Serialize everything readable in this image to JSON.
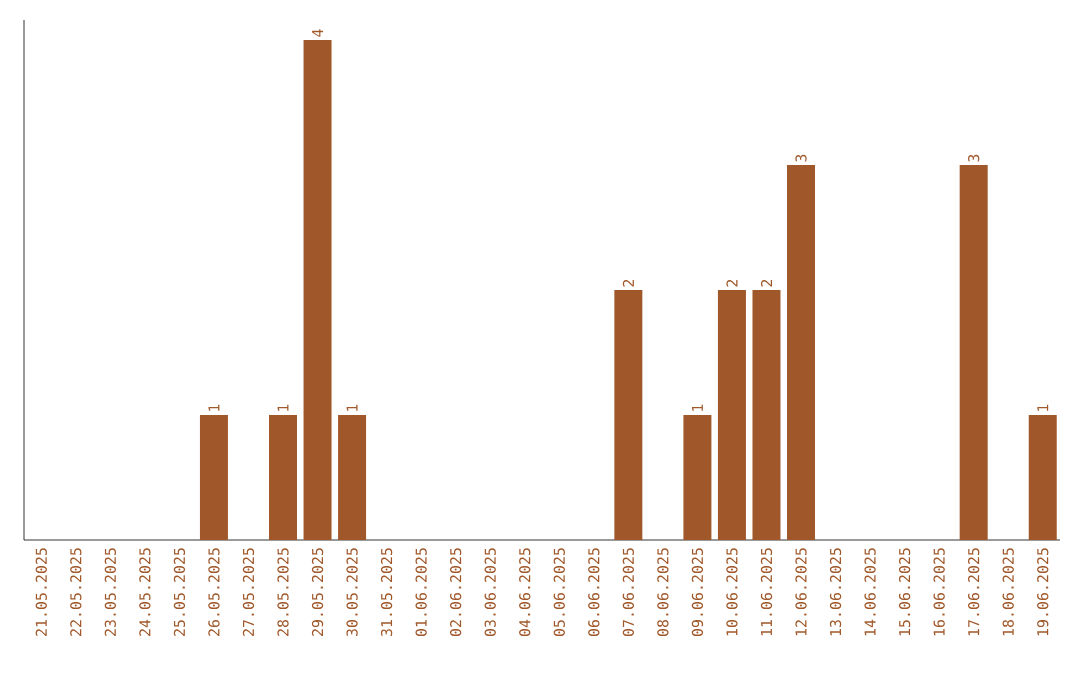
{
  "chart_data": {
    "type": "bar",
    "color": "#a0582a",
    "categories": [
      "21.05.2025",
      "22.05.2025",
      "23.05.2025",
      "24.05.2025",
      "25.05.2025",
      "26.05.2025",
      "27.05.2025",
      "28.05.2025",
      "29.05.2025",
      "30.05.2025",
      "31.05.2025",
      "01.06.2025",
      "02.06.2025",
      "03.06.2025",
      "04.06.2025",
      "05.06.2025",
      "06.06.2025",
      "07.06.2025",
      "08.06.2025",
      "09.06.2025",
      "10.06.2025",
      "11.06.2025",
      "12.06.2025",
      "13.06.2025",
      "14.06.2025",
      "15.06.2025",
      "16.06.2025",
      "17.06.2025",
      "18.06.2025",
      "19.06.2025"
    ],
    "values": [
      0,
      0,
      0,
      0,
      0,
      1,
      0,
      1,
      4,
      1,
      0,
      0,
      0,
      0,
      0,
      0,
      0,
      2,
      0,
      1,
      2,
      2,
      3,
      0,
      0,
      0,
      0,
      3,
      0,
      1
    ],
    "value_labels": [
      null,
      null,
      null,
      null,
      null,
      "1",
      null,
      "1",
      "4",
      "1",
      null,
      null,
      null,
      null,
      null,
      null,
      null,
      "2",
      null,
      "1",
      "2",
      "2",
      "3",
      null,
      null,
      null,
      null,
      "3",
      null,
      "1"
    ],
    "grid": false
  }
}
